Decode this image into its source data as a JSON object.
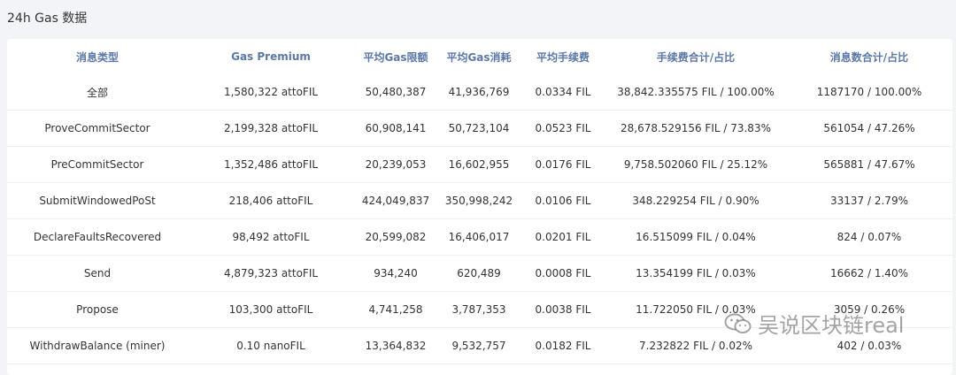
{
  "page": {
    "title": "24h Gas 数据"
  },
  "table": {
    "headers": [
      "消息类型",
      "Gas Premium",
      "平均Gas限额",
      "平均Gas消耗",
      "平均手续费",
      "手续费合计/占比",
      "消息数合计/占比"
    ],
    "rows": [
      [
        "全部",
        "1,580,322 attoFIL",
        "50,480,387",
        "41,936,769",
        "0.0334 FIL",
        "38,842.335575 FIL / 100.00%",
        "1187170 / 100.00%"
      ],
      [
        "ProveCommitSector",
        "2,199,328 attoFIL",
        "60,908,141",
        "50,723,104",
        "0.0523 FIL",
        "28,678.529156 FIL / 73.83%",
        "561054 / 47.26%"
      ],
      [
        "PreCommitSector",
        "1,352,486 attoFIL",
        "20,239,053",
        "16,602,955",
        "0.0176 FIL",
        "9,758.502060 FIL / 25.12%",
        "565881 / 47.67%"
      ],
      [
        "SubmitWindowedPoSt",
        "218,406 attoFIL",
        "424,049,837",
        "350,998,242",
        "0.0106 FIL",
        "348.229254 FIL / 0.90%",
        "33137 / 2.79%"
      ],
      [
        "DeclareFaultsRecovered",
        "98,492 attoFIL",
        "20,599,082",
        "16,406,017",
        "0.0201 FIL",
        "16.515099 FIL / 0.04%",
        "824 / 0.07%"
      ],
      [
        "Send",
        "4,879,323 attoFIL",
        "934,240",
        "620,489",
        "0.0008 FIL",
        "13.354199 FIL / 0.03%",
        "16662 / 1.40%"
      ],
      [
        "Propose",
        "103,300 attoFIL",
        "4,741,258",
        "3,787,353",
        "0.0038 FIL",
        "11.722050 FIL / 0.03%",
        "3059 / 0.26%"
      ],
      [
        "WithdrawBalance (miner)",
        "0.10 nanoFIL",
        "13,364,832",
        "9,532,757",
        "0.0182 FIL",
        "7.232822 FIL / 0.02%",
        "402 / 0.03%"
      ]
    ]
  },
  "watermark": {
    "text": "吴说区块链real",
    "icon": "wechat-icon"
  },
  "colors": {
    "header_text": "#5b78a8",
    "background": "#f3f4f7",
    "card": "#ffffff"
  }
}
